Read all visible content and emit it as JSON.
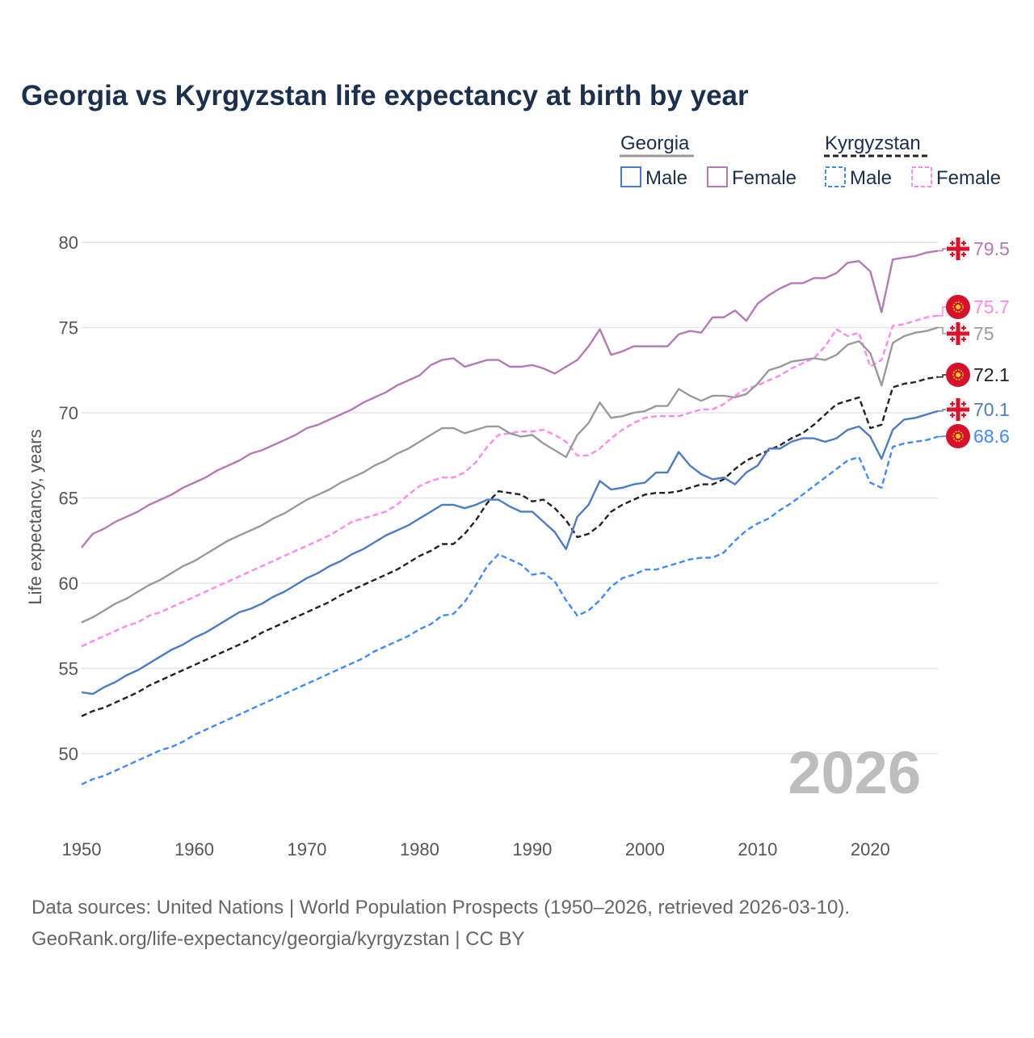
{
  "chart_data": {
    "type": "line",
    "title": "Georgia vs Kyrgyzstan life expectancy at birth by year",
    "xlabel": "",
    "ylabel": "Life expectancy, years",
    "xlim": [
      1950,
      2026
    ],
    "ylim": [
      46,
      80
    ],
    "grid": true,
    "x_ticks": [
      "1950",
      "1960",
      "1970",
      "1980",
      "1990",
      "2000",
      "2010",
      "2020"
    ],
    "y_ticks": [
      "50",
      "55",
      "60",
      "65",
      "70",
      "75",
      "80"
    ],
    "year_watermark": "2026",
    "legend": {
      "placement": "top-right",
      "groups": [
        {
          "name": "Georgia",
          "items": [
            "Male",
            "Female"
          ]
        },
        {
          "name": "Kyrgyzstan",
          "items": [
            "Male",
            "Female"
          ]
        }
      ]
    },
    "x_start": 1950,
    "series": [
      {
        "name": "Georgia Female",
        "color": "#b57ab5",
        "dash": false,
        "country": "georgia",
        "end_label": "79.5",
        "values": [
          62.1,
          62.9,
          63.2,
          63.6,
          63.9,
          64.2,
          64.6,
          64.9,
          65.2,
          65.6,
          65.9,
          66.2,
          66.6,
          66.9,
          67.2,
          67.6,
          67.8,
          68.1,
          68.4,
          68.7,
          69.1,
          69.3,
          69.6,
          69.9,
          70.2,
          70.6,
          70.9,
          71.2,
          71.6,
          71.9,
          72.2,
          72.8,
          73.1,
          73.2,
          72.7,
          72.9,
          73.1,
          73.1,
          72.7,
          72.7,
          72.8,
          72.6,
          72.3,
          72.7,
          73.1,
          73.9,
          74.9,
          73.4,
          73.6,
          73.9,
          73.9,
          73.9,
          73.9,
          74.6,
          74.8,
          74.7,
          75.6,
          75.6,
          76.0,
          75.4,
          76.4,
          76.9,
          77.3,
          77.6,
          77.6,
          77.9,
          77.9,
          78.2,
          78.8,
          78.9,
          78.3,
          75.9,
          79.0,
          79.1,
          79.2,
          79.4,
          79.5
        ]
      },
      {
        "name": "Kyrgyzstan Female",
        "color": "#ff88f0",
        "dash": true,
        "country": "kyrgyzstan",
        "end_label": "75.7",
        "values": [
          56.3,
          56.6,
          56.9,
          57.2,
          57.5,
          57.7,
          58.1,
          58.3,
          58.6,
          58.9,
          59.2,
          59.5,
          59.8,
          60.1,
          60.4,
          60.7,
          61.0,
          61.3,
          61.6,
          61.9,
          62.2,
          62.5,
          62.8,
          63.2,
          63.6,
          63.8,
          64.0,
          64.2,
          64.6,
          65.2,
          65.7,
          66.0,
          66.2,
          66.2,
          66.5,
          67.1,
          68.0,
          68.7,
          68.8,
          68.9,
          68.9,
          69.0,
          68.7,
          68.3,
          67.5,
          67.5,
          67.9,
          68.5,
          69.0,
          69.4,
          69.7,
          69.8,
          69.8,
          69.8,
          70.0,
          70.2,
          70.2,
          70.5,
          71.0,
          71.4,
          71.6,
          71.9,
          72.2,
          72.6,
          72.9,
          73.2,
          73.9,
          74.9,
          74.5,
          74.7,
          72.7,
          73.1,
          75.1,
          75.2,
          75.4,
          75.6,
          75.7
        ]
      },
      {
        "name": "Georgia",
        "color": "#9a9a9a",
        "dash": false,
        "country": "georgia",
        "end_label": "75",
        "values": [
          57.7,
          58.0,
          58.4,
          58.8,
          59.1,
          59.5,
          59.9,
          60.2,
          60.6,
          61.0,
          61.3,
          61.7,
          62.1,
          62.5,
          62.8,
          63.1,
          63.4,
          63.8,
          64.1,
          64.5,
          64.9,
          65.2,
          65.5,
          65.9,
          66.2,
          66.5,
          66.9,
          67.2,
          67.6,
          67.9,
          68.3,
          68.7,
          69.1,
          69.1,
          68.8,
          69.0,
          69.2,
          69.2,
          68.8,
          68.6,
          68.7,
          68.2,
          67.8,
          67.4,
          68.7,
          69.4,
          70.6,
          69.7,
          69.8,
          70.0,
          70.1,
          70.4,
          70.4,
          71.4,
          71.0,
          70.7,
          71.0,
          71.0,
          70.9,
          71.1,
          71.7,
          72.5,
          72.7,
          73.0,
          73.1,
          73.2,
          73.1,
          73.4,
          74.0,
          74.2,
          73.5,
          71.6,
          74.1,
          74.5,
          74.7,
          74.8,
          75.0
        ]
      },
      {
        "name": "Kyrgyzstan",
        "color": "#222222",
        "dash": true,
        "country": "kyrgyzstan",
        "end_label": "72.1",
        "values": [
          52.2,
          52.5,
          52.7,
          53.0,
          53.3,
          53.6,
          54.0,
          54.3,
          54.6,
          54.9,
          55.2,
          55.5,
          55.8,
          56.1,
          56.4,
          56.7,
          57.1,
          57.4,
          57.7,
          58.0,
          58.3,
          58.6,
          58.9,
          59.3,
          59.6,
          59.9,
          60.2,
          60.5,
          60.8,
          61.2,
          61.6,
          61.9,
          62.3,
          62.3,
          62.9,
          63.7,
          64.7,
          65.4,
          65.3,
          65.2,
          64.8,
          64.9,
          64.4,
          63.7,
          62.7,
          62.9,
          63.4,
          64.2,
          64.6,
          64.9,
          65.2,
          65.3,
          65.3,
          65.4,
          65.6,
          65.8,
          65.8,
          66.1,
          66.7,
          67.2,
          67.5,
          67.8,
          68.1,
          68.5,
          68.8,
          69.3,
          69.9,
          70.5,
          70.7,
          70.9,
          69.1,
          69.3,
          71.5,
          71.7,
          71.8,
          72.0,
          72.1
        ]
      },
      {
        "name": "Georgia Male",
        "color": "#4a7cc9",
        "dash": false,
        "country": "georgia",
        "end_label": "70.1",
        "values": [
          53.6,
          53.5,
          53.9,
          54.2,
          54.6,
          54.9,
          55.3,
          55.7,
          56.1,
          56.4,
          56.8,
          57.1,
          57.5,
          57.9,
          58.3,
          58.5,
          58.8,
          59.2,
          59.5,
          59.9,
          60.3,
          60.6,
          61.0,
          61.3,
          61.7,
          62.0,
          62.4,
          62.8,
          63.1,
          63.4,
          63.8,
          64.2,
          64.6,
          64.6,
          64.4,
          64.6,
          64.9,
          64.9,
          64.5,
          64.2,
          64.2,
          63.6,
          63.0,
          62.0,
          63.9,
          64.6,
          66.0,
          65.5,
          65.6,
          65.8,
          65.9,
          66.5,
          66.5,
          67.7,
          66.9,
          66.4,
          66.1,
          66.2,
          65.8,
          66.5,
          66.9,
          67.9,
          67.9,
          68.3,
          68.5,
          68.5,
          68.3,
          68.5,
          69.0,
          69.2,
          68.6,
          67.3,
          69.0,
          69.6,
          69.7,
          69.9,
          70.1
        ]
      },
      {
        "name": "Kyrgyzstan Male",
        "color": "#3d8bff",
        "dash": true,
        "country": "kyrgyzstan",
        "end_label": "68.6",
        "values": [
          48.2,
          48.5,
          48.7,
          49.0,
          49.3,
          49.6,
          49.9,
          50.2,
          50.4,
          50.7,
          51.1,
          51.4,
          51.7,
          52.0,
          52.3,
          52.6,
          52.9,
          53.2,
          53.5,
          53.8,
          54.1,
          54.4,
          54.7,
          55.0,
          55.3,
          55.6,
          56.0,
          56.3,
          56.6,
          56.9,
          57.3,
          57.6,
          58.1,
          58.2,
          58.9,
          59.9,
          61.0,
          61.7,
          61.4,
          61.1,
          60.5,
          60.6,
          60.1,
          59.0,
          58.1,
          58.4,
          59.0,
          59.8,
          60.3,
          60.5,
          60.8,
          60.8,
          61.0,
          61.2,
          61.4,
          61.5,
          61.5,
          61.8,
          62.5,
          63.1,
          63.5,
          63.8,
          64.3,
          64.7,
          65.2,
          65.7,
          66.2,
          66.7,
          67.2,
          67.4,
          65.9,
          65.6,
          68.0,
          68.2,
          68.3,
          68.4,
          68.6
        ]
      }
    ],
    "source_line1": "Data sources: United Nations | World Population Prospects (1950–2026, retrieved 2026-03-10).",
    "source_line2": "GeoRank.org/life-expectancy/georgia/kyrgyzstan | CC BY"
  }
}
